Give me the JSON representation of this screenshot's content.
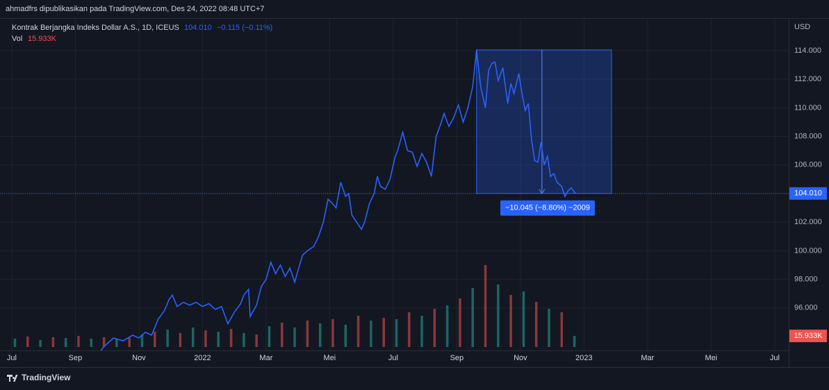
{
  "header": {
    "text": "ahmadfrs dipublikasikan pada TradingView.com, Des 24, 2022 08:48 UTC+7"
  },
  "footer": {
    "brand": "TradingView"
  },
  "chart_data": {
    "type": "line",
    "title": "Kontrak Berjangka Indeks Dollar A.S., 1D, ICEUS",
    "legend": {
      "price": "104.010",
      "change": "−0.115 (−0.11%)"
    },
    "y_unit": "USD",
    "grid": true,
    "xlim": [
      -0.37,
      24.44
    ],
    "ylim": [
      93.03,
      116.23
    ],
    "xticks": [
      {
        "value": 0,
        "label": "Jul"
      },
      {
        "value": 2,
        "label": "Sep"
      },
      {
        "value": 4,
        "label": "Nov"
      },
      {
        "value": 6,
        "label": "2022"
      },
      {
        "value": 8,
        "label": "Mar"
      },
      {
        "value": 10,
        "label": "Mei"
      },
      {
        "value": 12,
        "label": "Jul"
      },
      {
        "value": 14,
        "label": "Sep"
      },
      {
        "value": 16,
        "label": "Nov"
      },
      {
        "value": 18,
        "label": "2023"
      },
      {
        "value": 20,
        "label": "Mar"
      },
      {
        "value": 22,
        "label": "Mei"
      },
      {
        "value": 24,
        "label": "Jul"
      }
    ],
    "yticks": [
      {
        "value": 96,
        "label": "96.000"
      },
      {
        "value": 98,
        "label": "98.000"
      },
      {
        "value": 100,
        "label": "100.000"
      },
      {
        "value": 102,
        "label": "102.000"
      },
      {
        "value": 104,
        "label": "104.000"
      },
      {
        "value": 106,
        "label": "106.000"
      },
      {
        "value": 108,
        "label": "108.000"
      },
      {
        "value": 110,
        "label": "110.000"
      },
      {
        "value": 112,
        "label": "112.000"
      },
      {
        "value": 114,
        "label": "114.000"
      }
    ],
    "series": [
      {
        "color": "#2962ff",
        "x": [
          2.65,
          2.9,
          3.2,
          3.5,
          3.8,
          4.0,
          4.2,
          4.4,
          4.6,
          4.8,
          4.95,
          5.05,
          5.2,
          5.4,
          5.6,
          5.8,
          6.0,
          6.2,
          6.4,
          6.6,
          6.7,
          6.8,
          7.0,
          7.2,
          7.3,
          7.45,
          7.5,
          7.7,
          7.85,
          8.0,
          8.15,
          8.3,
          8.45,
          8.6,
          8.75,
          8.9,
          9.0,
          9.15,
          9.3,
          9.5,
          9.65,
          9.8,
          9.95,
          10.05,
          10.2,
          10.35,
          10.5,
          10.6,
          10.7,
          10.85,
          11.0,
          11.1,
          11.25,
          11.4,
          11.5,
          11.6,
          11.75,
          11.9,
          12.05,
          12.15,
          12.3,
          12.45,
          12.6,
          12.75,
          12.9,
          13.05,
          13.2,
          13.35,
          13.5,
          13.6,
          13.75,
          13.9,
          14.05,
          14.2,
          14.35,
          14.5,
          14.62,
          14.75,
          14.9,
          15.0,
          15.1,
          15.2,
          15.3,
          15.45,
          15.6,
          15.7,
          15.8,
          15.95,
          16.05,
          16.15,
          16.25,
          16.35,
          16.45,
          16.55,
          16.65,
          16.75,
          16.85,
          16.95,
          17.05,
          17.15,
          17.3,
          17.4,
          17.5,
          17.6,
          17.73
        ],
        "values": [
          92.6,
          93.3,
          93.9,
          93.7,
          94.1,
          93.9,
          94.3,
          94.1,
          95.2,
          95.8,
          96.6,
          96.9,
          96.1,
          96.4,
          96.2,
          96.4,
          96.1,
          96.3,
          95.9,
          96.1,
          95.5,
          94.9,
          95.7,
          96.3,
          96.9,
          97.3,
          95.4,
          96.2,
          97.5,
          98.0,
          99.2,
          98.4,
          99.0,
          98.2,
          98.8,
          97.8,
          98.6,
          99.7,
          100.0,
          100.3,
          101.0,
          102.0,
          103.6,
          103.4,
          103.0,
          104.8,
          103.8,
          104.0,
          102.5,
          102.0,
          101.5,
          102.0,
          103.3,
          104.0,
          105.2,
          104.5,
          104.3,
          105.0,
          106.5,
          107.1,
          108.3,
          107.0,
          106.9,
          105.9,
          106.8,
          106.2,
          105.2,
          108.0,
          108.9,
          109.6,
          108.7,
          109.3,
          110.2,
          109.0,
          110.0,
          111.5,
          114.05,
          111.5,
          110.0,
          112.6,
          113.1,
          113.2,
          111.9,
          112.8,
          110.3,
          111.7,
          111.0,
          112.4,
          111.0,
          109.8,
          110.3,
          107.8,
          106.3,
          106.2,
          107.6,
          106.0,
          106.6,
          105.2,
          105.4,
          104.8,
          104.5,
          103.8,
          104.2,
          104.4,
          104.01
        ]
      }
    ],
    "volume": {
      "name": "Vol",
      "last_label": "15.933K",
      "colors": [
        "#26a69a",
        "#ef5350"
      ],
      "x": [
        0.1,
        0.5,
        0.9,
        1.3,
        1.7,
        2.1,
        2.5,
        2.9,
        3.3,
        3.7,
        4.1,
        4.5,
        4.9,
        5.3,
        5.7,
        6.1,
        6.5,
        6.9,
        7.3,
        7.7,
        8.1,
        8.5,
        8.9,
        9.3,
        9.7,
        10.1,
        10.5,
        10.9,
        11.3,
        11.7,
        12.1,
        12.5,
        12.9,
        13.3,
        13.7,
        14.1,
        14.5,
        14.9,
        15.3,
        15.7,
        16.1,
        16.5,
        16.9,
        17.3,
        17.7
      ],
      "values": [
        12,
        15,
        10,
        14,
        13,
        16,
        12,
        14,
        11,
        13,
        18,
        22,
        25,
        20,
        28,
        24,
        22,
        26,
        20,
        18,
        30,
        35,
        28,
        38,
        34,
        40,
        32,
        45,
        38,
        42,
        40,
        50,
        45,
        55,
        60,
        70,
        85,
        118,
        90,
        75,
        80,
        65,
        55,
        50,
        15.933
      ]
    },
    "measure": {
      "from": 114.05,
      "to": 104.01,
      "label": "−10.045 (−8.80%) −2009"
    }
  }
}
